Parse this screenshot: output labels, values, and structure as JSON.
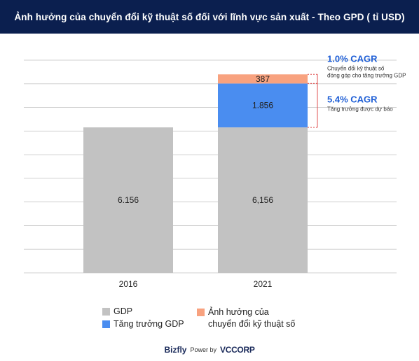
{
  "header": {
    "title": "Ảnh hưởng của chuyển đổi kỹ thuật số đối với lĩnh vực sản xuất - Theo GPD ( tỉ USD)"
  },
  "chart_data": {
    "type": "bar",
    "stacked": true,
    "categories": [
      "2016",
      "2021"
    ],
    "series": [
      {
        "name": "GDP",
        "values": [
          6156,
          6156
        ],
        "labels": [
          "6.156",
          "6,156"
        ],
        "color": "#c2c2c2"
      },
      {
        "name": "Tăng trưởng GDP",
        "values": [
          0,
          1856
        ],
        "labels": [
          "",
          "1.856"
        ],
        "color": "#4a8df0"
      },
      {
        "name": "Ảnh hưởng của chuyển đổi kỹ thuật số",
        "values": [
          0,
          387
        ],
        "labels": [
          "",
          "387"
        ],
        "color": "#f8a27f"
      }
    ],
    "ylim": [
      0,
      9000
    ],
    "grid": true,
    "legend_position": "bottom-left",
    "annotations": [
      {
        "title": "1.0% CAGR",
        "text": "Chuyển đổi kỹ thuật số đóng góp cho tăng trưởng GDP",
        "text_lines": [
          "Chuyển đổi kỹ thuật số",
          "đóng góp cho tăng trưởng GDP"
        ],
        "target_series": 2
      },
      {
        "title": "5.4% CAGR",
        "text": "Tăng trưởng được dự báo",
        "target_series": 1
      }
    ],
    "annotation_color": "#1f5fd6"
  },
  "legend": {
    "gdp": "GDP",
    "growth": "Tăng trưởng GDP",
    "digital_line1": "Ảnh hưởng của",
    "digital_line2": "chuyển đổi kỹ thuật số"
  },
  "footer": {
    "brand": "Bizfly",
    "power": "Power by",
    "vcorp": "VCCORP"
  }
}
